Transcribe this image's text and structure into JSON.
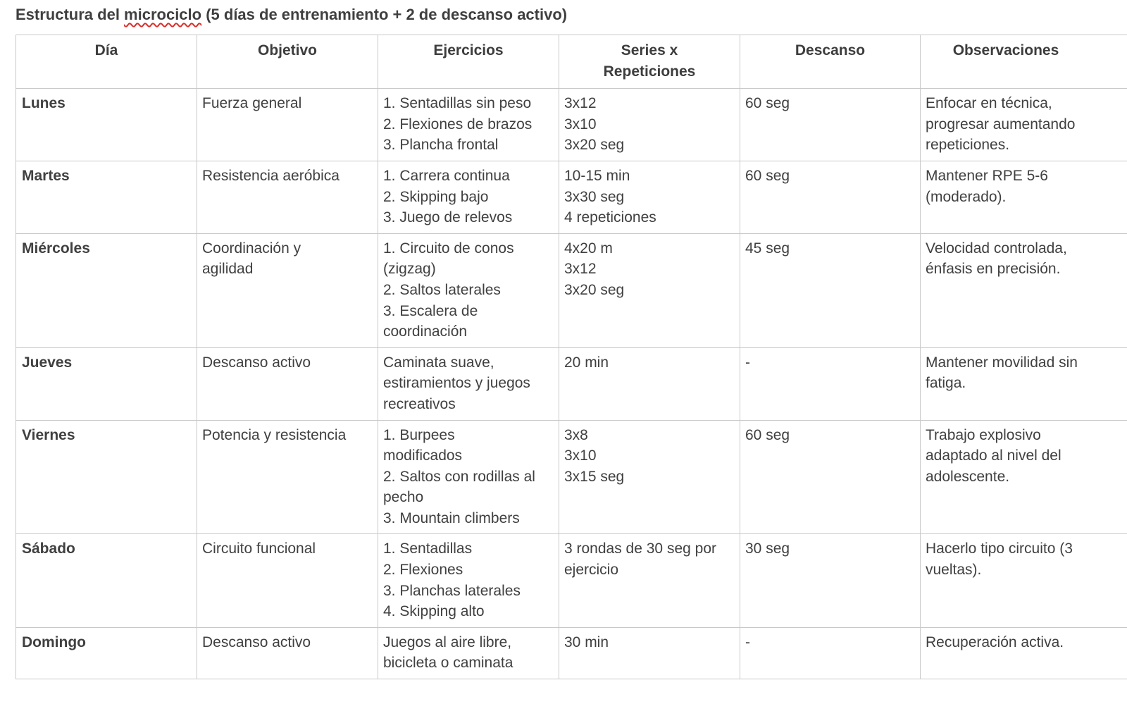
{
  "title": {
    "prefix": "Estructura del ",
    "flagged_word": "microciclo",
    "suffix": " (5 días de entrenamiento + 2 de descanso activo)"
  },
  "columns": [
    "Día",
    "Objetivo",
    "Ejercicios",
    "Series x Repeticiones",
    "Descanso",
    "Observaciones"
  ],
  "rows": [
    {
      "day": "Lunes",
      "objective": "Fuerza general",
      "exercises": [
        "1. Sentadillas sin peso",
        "2. Flexiones de brazos",
        "3. Plancha frontal"
      ],
      "sets": [
        "3x12",
        "3x10",
        "3x20 seg"
      ],
      "rest": "60 seg",
      "notes": "Enfocar en técnica, progresar aumentando repeticiones."
    },
    {
      "day": "Martes",
      "objective": "Resistencia aeróbica",
      "exercises": [
        "1. Carrera continua",
        "2. Skipping bajo",
        "3. Juego de relevos"
      ],
      "sets": [
        "10-15 min",
        "3x30 seg",
        "4 repeticiones"
      ],
      "rest": "60 seg",
      "notes": "Mantener RPE 5-6 (moderado)."
    },
    {
      "day": "Miércoles",
      "objective": "Coordinación y agilidad",
      "exercises": [
        "1. Circuito de conos (zigzag)",
        "2. Saltos laterales",
        "3. Escalera de coordinación"
      ],
      "sets": [
        "4x20 m",
        "3x12",
        "3x20 seg"
      ],
      "rest": "45 seg",
      "notes": "Velocidad controlada, énfasis en precisión."
    },
    {
      "day": "Jueves",
      "objective": "Descanso activo",
      "exercises": [
        "Caminata suave, estiramientos y juegos recreativos"
      ],
      "sets": [
        "20 min"
      ],
      "rest": "-",
      "notes": "Mantener movilidad sin fatiga."
    },
    {
      "day": "Viernes",
      "objective": "Potencia y resistencia",
      "exercises": [
        "1. Burpees modificados",
        "2. Saltos con rodillas al pecho",
        "3. Mountain climbers"
      ],
      "sets": [
        "3x8",
        "3x10",
        "3x15 seg"
      ],
      "rest": "60 seg",
      "notes": "Trabajo explosivo adaptado al nivel del adolescente."
    },
    {
      "day": "Sábado",
      "objective": "Circuito funcional",
      "exercises": [
        "1. Sentadillas",
        "2. Flexiones",
        "3. Planchas laterales",
        "4. Skipping alto"
      ],
      "sets": [
        "3 rondas de 30 seg por ejercicio"
      ],
      "rest": "30 seg",
      "notes": "Hacerlo tipo circuito (3 vueltas)."
    },
    {
      "day": "Domingo",
      "objective": "Descanso activo",
      "exercises": [
        "Juegos al aire libre, bicicleta o caminata"
      ],
      "sets": [
        "30 min"
      ],
      "rest": "-",
      "notes": "Recuperación activa."
    }
  ],
  "colors": {
    "border": "#c9c9c9",
    "text": "#404040",
    "spellcheck": "#d9302c"
  }
}
